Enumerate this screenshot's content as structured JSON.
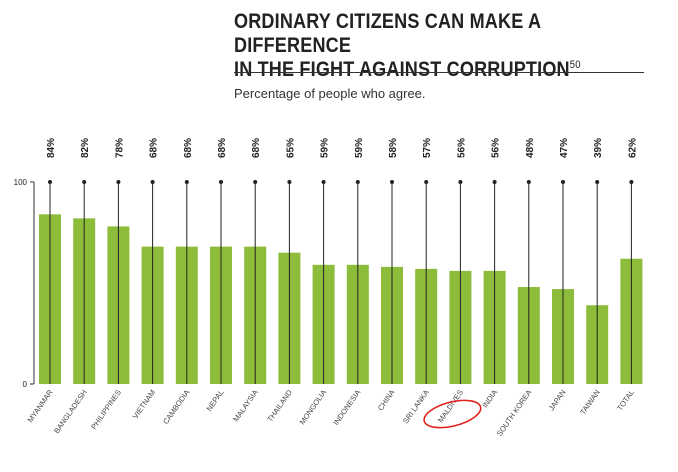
{
  "chart_data": {
    "type": "bar",
    "title_line1": "ORDINARY CITIZENS CAN MAKE A DIFFERENCE",
    "title_line2": "IN THE FIGHT AGAINST CORRUPTION",
    "footnote": "50",
    "subtitle": "Percentage of people who agree.",
    "categories": [
      "MYANMAR",
      "BANGLADESH",
      "PHILIPPINES",
      "VIETNAM",
      "CAMBODIA",
      "NEPAL",
      "MALAYSIA",
      "THAILAND",
      "MONGOLIA",
      "INDONESIA",
      "CHINA",
      "SRI LANKA",
      "MALDIVES",
      "INDIA",
      "SOUTH KOREA",
      "JAPAN",
      "TAIWAN",
      "TOTAL"
    ],
    "values": [
      84,
      82,
      78,
      68,
      68,
      68,
      68,
      65,
      59,
      59,
      58,
      57,
      56,
      56,
      48,
      47,
      39,
      62
    ],
    "labels": [
      "84%",
      "82%",
      "78%",
      "68%",
      "68%",
      "68%",
      "68%",
      "65%",
      "59%",
      "59%",
      "58%",
      "57%",
      "56%",
      "56%",
      "48%",
      "47%",
      "39%",
      "62%"
    ],
    "y_ticks": [
      "0",
      "100"
    ],
    "ylim": [
      0,
      100
    ],
    "highlighted_category": "MALDIVES",
    "bar_color": "#8dbc3a",
    "highlight_color": "#e0201b",
    "text_color": "#222222"
  }
}
